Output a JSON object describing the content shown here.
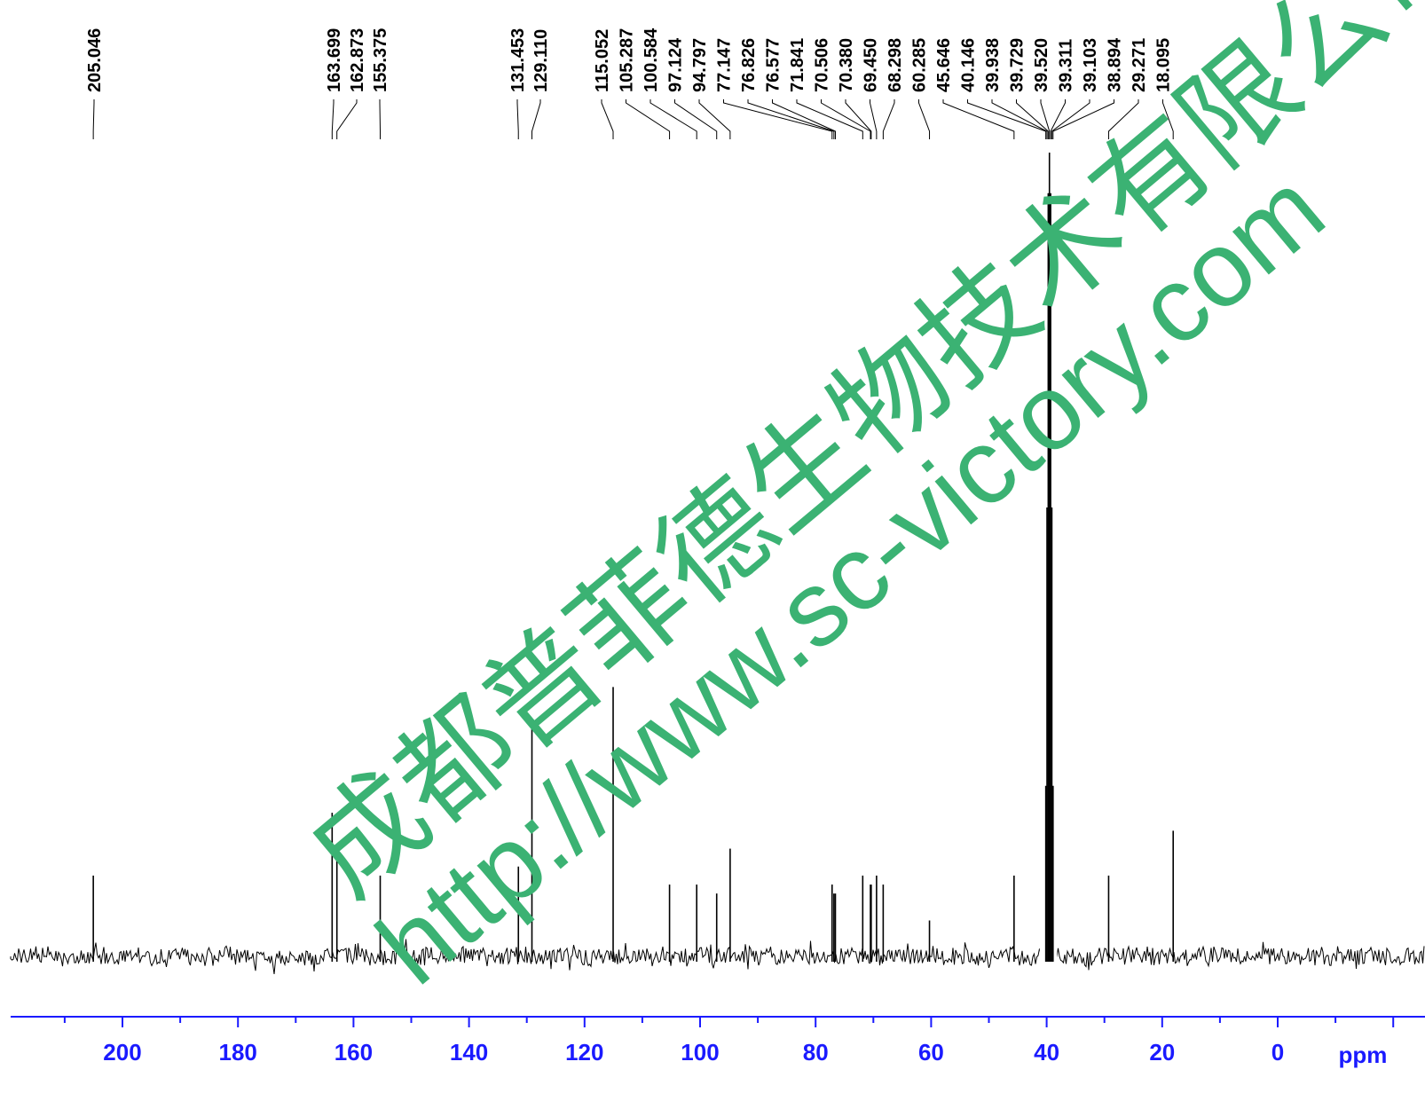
{
  "chart_data": {
    "type": "line",
    "title": "",
    "xlabel": "ppm",
    "ylabel": "",
    "x_reversed": true,
    "xlim": [
      220,
      -19
    ],
    "grid": false,
    "x_ticks": [
      200,
      180,
      160,
      140,
      120,
      100,
      80,
      60,
      40,
      20,
      0
    ],
    "x_tick_labels": [
      "200",
      "180",
      "160",
      "140",
      "120",
      "100",
      "80",
      "60",
      "40",
      "20",
      "0"
    ],
    "unit_label": "ppm",
    "peak_labels": [
      "205.046",
      "163.699",
      "162.873",
      "155.375",
      "131.453",
      "129.110",
      "115.052",
      "105.287",
      "100.584",
      "97.124",
      "94.797",
      "77.147",
      "76.826",
      "76.577",
      "71.841",
      "70.506",
      "70.380",
      "69.450",
      "68.298",
      "60.285",
      "45.646",
      "40.146",
      "39.938",
      "39.729",
      "39.520",
      "39.311",
      "39.103",
      "38.894",
      "29.271",
      "18.095"
    ],
    "peaks": [
      {
        "ppm": 205.046,
        "intensity": 0.09
      },
      {
        "ppm": 163.699,
        "intensity": 0.16
      },
      {
        "ppm": 162.873,
        "intensity": 0.11
      },
      {
        "ppm": 155.375,
        "intensity": 0.09
      },
      {
        "ppm": 131.453,
        "intensity": 0.1
      },
      {
        "ppm": 129.11,
        "intensity": 0.26
      },
      {
        "ppm": 115.052,
        "intensity": 0.3
      },
      {
        "ppm": 105.287,
        "intensity": 0.08
      },
      {
        "ppm": 100.584,
        "intensity": 0.08
      },
      {
        "ppm": 97.124,
        "intensity": 0.07
      },
      {
        "ppm": 94.797,
        "intensity": 0.12
      },
      {
        "ppm": 77.147,
        "intensity": 0.08
      },
      {
        "ppm": 76.826,
        "intensity": 0.07
      },
      {
        "ppm": 76.577,
        "intensity": 0.07
      },
      {
        "ppm": 71.841,
        "intensity": 0.09
      },
      {
        "ppm": 70.506,
        "intensity": 0.08
      },
      {
        "ppm": 70.38,
        "intensity": 0.08
      },
      {
        "ppm": 69.45,
        "intensity": 0.09
      },
      {
        "ppm": 68.298,
        "intensity": 0.08
      },
      {
        "ppm": 60.285,
        "intensity": 0.04
      },
      {
        "ppm": 45.646,
        "intensity": 0.09
      },
      {
        "ppm": 40.146,
        "intensity": 0.19
      },
      {
        "ppm": 39.938,
        "intensity": 0.5
      },
      {
        "ppm": 39.729,
        "intensity": 0.85
      },
      {
        "ppm": 39.52,
        "intensity": 1.0
      },
      {
        "ppm": 39.311,
        "intensity": 0.85
      },
      {
        "ppm": 39.103,
        "intensity": 0.5
      },
      {
        "ppm": 38.894,
        "intensity": 0.19
      },
      {
        "ppm": 29.271,
        "intensity": 0.09
      },
      {
        "ppm": 18.095,
        "intensity": 0.14
      }
    ]
  },
  "watermark": {
    "company": "成都普菲德生物技术有限公司",
    "url": "http://www.sc-victory.com",
    "color": "#3bb273"
  },
  "colors": {
    "spectrum": "#000000",
    "axis": "#1a1aff"
  }
}
